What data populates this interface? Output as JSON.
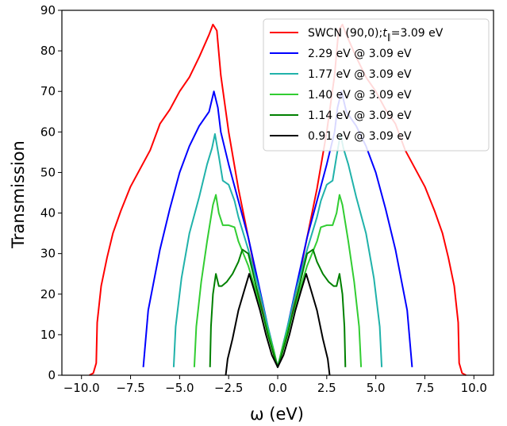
{
  "chart_data": {
    "type": "line",
    "title": "",
    "xlabel": "ω (eV)",
    "ylabel": "Transmission",
    "xlim": [
      -11,
      11
    ],
    "ylim": [
      0,
      90
    ],
    "xticks": [
      -10,
      -7.5,
      -5,
      -2.5,
      0,
      2.5,
      5,
      7.5,
      10
    ],
    "xtick_labels": [
      "−10.0",
      "−7.5",
      "−5.0",
      "−2.5",
      "0.0",
      "2.5",
      "5.0",
      "7.5",
      "10.0"
    ],
    "yticks": [
      0,
      10,
      20,
      30,
      40,
      50,
      60,
      70,
      80,
      90
    ],
    "ytick_labels": [
      "0",
      "10",
      "20",
      "30",
      "40",
      "50",
      "60",
      "70",
      "80",
      "90"
    ],
    "legend_position": "top-right",
    "grid": false,
    "series": [
      {
        "name": "SWCN (90,0);t∥=3.09 eV",
        "legend_main": "SWCN (90,0);",
        "legend_t": "t",
        "legend_sub": "∥",
        "legend_rest": "=3.09 eV",
        "color": "#ff0000",
        "x": [
          -9.6,
          -9.4,
          -9.25,
          -9.2,
          -9.0,
          -8.7,
          -8.4,
          -8.0,
          -7.5,
          -7.0,
          -6.5,
          -6.0,
          -5.5,
          -5.0,
          -4.5,
          -4.0,
          -3.5,
          -3.3,
          -3.1,
          -2.9,
          -2.5,
          -2.0,
          -1.5,
          -1.0,
          -0.5,
          -0.2,
          0.0,
          0.2,
          0.5,
          1.0,
          1.5,
          2.0,
          2.5,
          2.9,
          3.1,
          3.3,
          3.5,
          4.0,
          4.5,
          5.0,
          5.5,
          6.0,
          6.5,
          7.0,
          7.5,
          8.0,
          8.4,
          8.7,
          9.0,
          9.2,
          9.25,
          9.4,
          9.6
        ],
        "y": [
          0,
          0.5,
          3,
          13,
          22,
          29,
          35,
          40.5,
          46.5,
          51,
          55.5,
          62,
          65.5,
          70,
          73.5,
          78.5,
          84,
          86.5,
          85,
          74,
          60,
          46,
          34,
          22,
          11,
          5,
          2,
          5,
          11,
          22,
          34,
          46,
          60,
          74,
          85,
          86.5,
          84,
          78.5,
          73.5,
          70,
          65.5,
          62,
          55.5,
          51,
          46.5,
          40.5,
          35,
          29,
          22,
          13,
          3,
          0.5,
          0
        ]
      },
      {
        "name": "2.29 eV @ 3.09 eV",
        "color": "#0000ff",
        "x": [
          -6.85,
          -6.6,
          -6.0,
          -5.5,
          -5.0,
          -4.5,
          -4.0,
          -3.5,
          -3.25,
          -3.05,
          -2.9,
          -2.5,
          -2.0,
          -1.5,
          -1.0,
          -0.5,
          -0.2,
          0.0,
          0.2,
          0.5,
          1.0,
          1.5,
          2.0,
          2.5,
          2.9,
          3.05,
          3.25,
          3.5,
          4.0,
          4.5,
          5.0,
          5.5,
          6.0,
          6.6,
          6.85
        ],
        "y": [
          2,
          16,
          31,
          41,
          50,
          56.5,
          61.5,
          65,
          70,
          66,
          60,
          52,
          43,
          34,
          23,
          12,
          6,
          2,
          6,
          12,
          23,
          34,
          43,
          52,
          60,
          66,
          70,
          65,
          61.5,
          56.5,
          50,
          41,
          31,
          16,
          2
        ]
      },
      {
        "name": "1.77 eV @ 3.09 eV",
        "color": "#20b2aa",
        "x": [
          -5.3,
          -5.2,
          -4.9,
          -4.5,
          -4.0,
          -3.6,
          -3.35,
          -3.2,
          -3.0,
          -2.8,
          -2.5,
          -2.2,
          -2.0,
          -1.5,
          -1.0,
          -0.5,
          -0.2,
          0.0,
          0.2,
          0.5,
          1.0,
          1.5,
          2.0,
          2.2,
          2.5,
          2.8,
          3.0,
          3.2,
          3.35,
          3.6,
          4.0,
          4.5,
          4.9,
          5.2,
          5.3
        ],
        "y": [
          2,
          12,
          24,
          35,
          44,
          52,
          56,
          59.5,
          54,
          48,
          47,
          43,
          39,
          31,
          22,
          12,
          6,
          2,
          6,
          12,
          22,
          31,
          39,
          43,
          47,
          48,
          54,
          59.5,
          56,
          52,
          44,
          35,
          24,
          12,
          2
        ]
      },
      {
        "name": "1.40 eV @ 3.09 eV",
        "color": "#32cd32",
        "x": [
          -4.25,
          -4.15,
          -3.9,
          -3.6,
          -3.3,
          -3.15,
          -3.0,
          -2.8,
          -2.5,
          -2.2,
          -2.0,
          -1.5,
          -1.0,
          -0.5,
          -0.2,
          0.0,
          0.2,
          0.5,
          1.0,
          1.5,
          2.0,
          2.2,
          2.5,
          2.8,
          3.0,
          3.15,
          3.3,
          3.6,
          3.9,
          4.15,
          4.25
        ],
        "y": [
          2,
          12,
          23,
          33,
          42,
          44.5,
          40,
          37,
          37,
          36.5,
          33,
          27,
          19,
          11,
          6,
          2,
          6,
          11,
          19,
          27,
          33,
          36.5,
          37,
          37,
          40,
          44.5,
          42,
          33,
          23,
          12,
          2
        ]
      },
      {
        "name": "1.14 eV @ 3.09 eV",
        "color": "#008000",
        "x": [
          -3.45,
          -3.4,
          -3.3,
          -3.15,
          -3.0,
          -2.85,
          -2.6,
          -2.3,
          -2.0,
          -1.8,
          -1.5,
          -1.0,
          -0.5,
          -0.2,
          0.0,
          0.2,
          0.5,
          1.0,
          1.5,
          1.8,
          2.0,
          2.3,
          2.6,
          2.85,
          3.0,
          3.15,
          3.3,
          3.4,
          3.45
        ],
        "y": [
          2,
          12,
          20,
          25,
          22,
          22,
          23,
          25,
          28,
          31,
          30,
          20,
          10,
          5,
          2,
          5,
          10,
          20,
          30,
          31,
          28,
          25,
          23,
          22,
          22,
          25,
          20,
          12,
          2
        ]
      },
      {
        "name": "0.91 eV @ 3.09 eV",
        "color": "#000000",
        "x": [
          -2.65,
          -2.55,
          -2.3,
          -2.0,
          -1.7,
          -1.45,
          -1.2,
          -0.9,
          -0.6,
          -0.3,
          0.0,
          0.3,
          0.6,
          0.9,
          1.2,
          1.45,
          1.7,
          2.0,
          2.3,
          2.55,
          2.65
        ],
        "y": [
          0,
          4,
          9,
          16,
          21,
          25,
          21,
          16,
          10,
          5,
          2,
          5,
          10,
          16,
          21,
          25,
          21,
          16,
          9,
          4,
          0
        ]
      }
    ]
  }
}
